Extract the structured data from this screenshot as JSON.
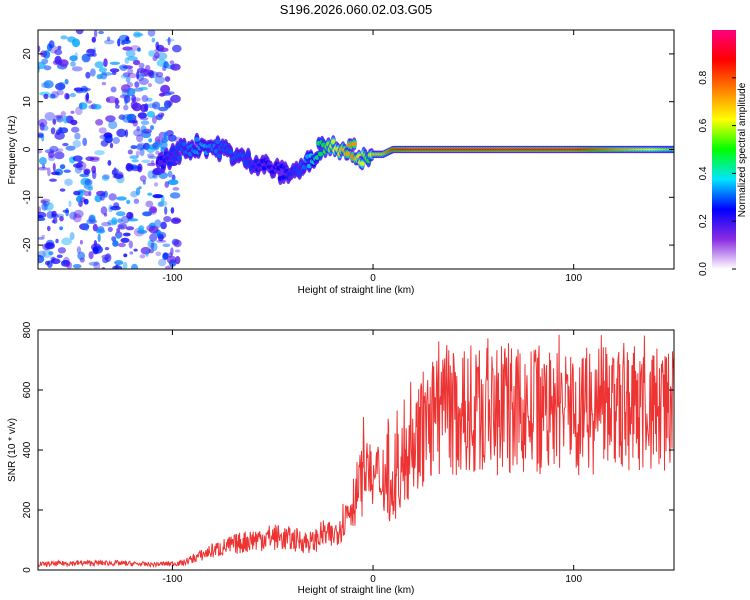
{
  "chart_data": [
    {
      "type": "heatmap",
      "title": "S196.2026.060.02.03.G05",
      "xlabel": "Height of straight line (km)",
      "ylabel": "Frequency (Hz)",
      "xlim": [
        -167,
        150
      ],
      "ylim": [
        -25,
        25
      ],
      "xticks": [
        -100,
        0,
        100
      ],
      "yticks": [
        -20,
        -10,
        0,
        10,
        20
      ],
      "colorbar": {
        "label": "Normalized spectral amplitude",
        "range": [
          0,
          1
        ],
        "ticks": [
          0.0,
          0.2,
          0.4,
          0.6,
          0.8
        ],
        "colors": [
          "#ffffff",
          "#8a2be2",
          "#0000ff",
          "#00e5ff",
          "#00ff00",
          "#ffff00",
          "#ff8000",
          "#ff0000",
          "#ff0080"
        ]
      },
      "ridge": {
        "x": [
          -107,
          -95,
          -85,
          -75,
          -65,
          -55,
          -45,
          -35,
          -25,
          -15,
          -10,
          -5,
          -2,
          0,
          5,
          10,
          20,
          50,
          100,
          150
        ],
        "frequency": [
          -3,
          0,
          1,
          0,
          -2,
          -3,
          -5,
          -4,
          1,
          0.5,
          0,
          -2,
          -3,
          -1,
          -1,
          0,
          0,
          0,
          0,
          0
        ],
        "amplitude": [
          0.25,
          0.3,
          0.35,
          0.3,
          0.3,
          0.25,
          0.25,
          0.3,
          0.5,
          0.7,
          0.75,
          0.6,
          0.5,
          0.7,
          0.7,
          0.85,
          0.9,
          0.9,
          0.9,
          0.55
        ]
      }
    },
    {
      "type": "line",
      "xlabel": "Height of straight line (km)",
      "ylabel": "SNR (10 * v/v)",
      "xlim": [
        -167,
        150
      ],
      "ylim": [
        0,
        800
      ],
      "xticks": [
        -100,
        0,
        100
      ],
      "yticks": [
        0,
        200,
        400,
        600,
        800
      ],
      "series": [
        {
          "name": "SNR",
          "color": "#ee3333",
          "x": [
            -167,
            -150,
            -130,
            -110,
            -95,
            -90,
            -80,
            -70,
            -60,
            -50,
            -40,
            -30,
            -25,
            -20,
            -15,
            -10,
            -5,
            0,
            5,
            10,
            15,
            20,
            25,
            30,
            40,
            50,
            60,
            80,
            100,
            120,
            140,
            150
          ],
          "values": [
            20,
            25,
            25,
            20,
            25,
            40,
            70,
            90,
            110,
            120,
            110,
            100,
            130,
            120,
            180,
            250,
            330,
            320,
            350,
            260,
            390,
            450,
            500,
            540,
            560,
            570,
            570,
            570,
            570,
            575,
            580,
            580
          ]
        }
      ]
    }
  ]
}
